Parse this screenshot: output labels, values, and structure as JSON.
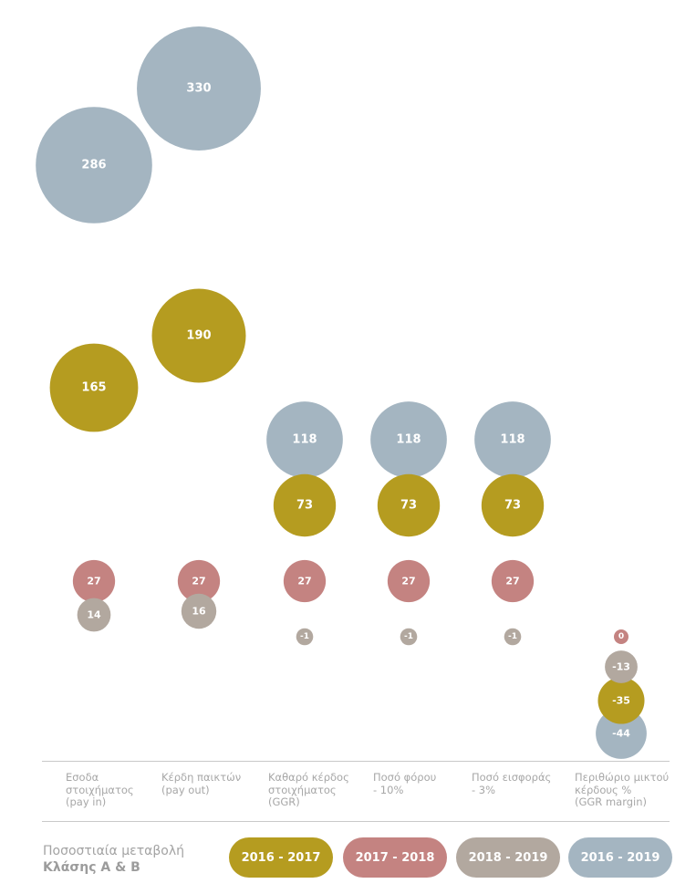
{
  "chart_data": {
    "type": "bubble",
    "categories": [
      [
        "Εσοδα",
        "στοιχήματος",
        "(pay in)"
      ],
      [
        "Κέρδη παικτών",
        "(pay out)"
      ],
      [
        "Καθαρό κέρδος",
        "στοιχήματος",
        "(GGR)"
      ],
      [
        "Ποσό φόρου",
        "- 10%"
      ],
      [
        "Ποσό εισφοράς",
        "- 3%"
      ],
      [
        "Περιθώριο μικτού",
        "κέρδους %",
        "(GGR margin)"
      ]
    ],
    "series": [
      {
        "name": "2016 - 2017",
        "color": "#b59c20",
        "values": [
          165,
          190,
          73,
          73,
          73,
          -35
        ]
      },
      {
        "name": "2017 - 2018",
        "color": "#c48381",
        "values": [
          27,
          27,
          27,
          27,
          27,
          0
        ]
      },
      {
        "name": "2018 - 2019",
        "color": "#b2a89f",
        "values": [
          14,
          16,
          -1,
          -1,
          -1,
          -13
        ]
      },
      {
        "name": "2016 - 2019",
        "color": "#a4b5c1",
        "values": [
          286,
          330,
          118,
          118,
          118,
          -44
        ]
      }
    ],
    "data_labels": [
      [
        "165",
        "190",
        "73",
        "73",
        "73",
        "-35"
      ],
      [
        "27",
        "27",
        "27",
        "27",
        "27",
        "0"
      ],
      [
        "14",
        "16",
        "-1",
        "-1",
        "-1",
        "-13"
      ],
      [
        "286",
        "330",
        "118",
        "118",
        "118",
        "-44"
      ]
    ],
    "legend_placement": "bottom"
  },
  "legend": {
    "title_line1": "Ποσοστιαία μεταβολή",
    "title_line2": "Κλάσης Α & Β"
  }
}
